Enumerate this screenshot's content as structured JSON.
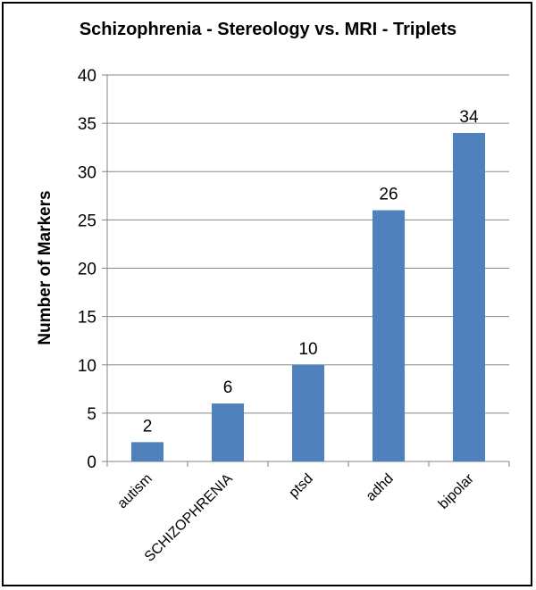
{
  "chart_data": {
    "type": "bar",
    "title": "Schizophrenia - Stereology vs. MRI - Triplets",
    "xlabel": "",
    "ylabel": "Number of Markers",
    "categories": [
      "autism",
      "SCHIZOPHRENIA",
      "ptsd",
      "adhd",
      "bipolar"
    ],
    "values": [
      2,
      6,
      10,
      26,
      34
    ],
    "data_labels": [
      "2",
      "6",
      "10",
      "26",
      "34"
    ],
    "ylim": [
      0,
      40
    ],
    "yticks": [
      "0",
      "5",
      "10",
      "15",
      "20",
      "25",
      "30",
      "35",
      "40"
    ],
    "grid": true,
    "legend": "none",
    "bar_color": "#4f81bd"
  }
}
